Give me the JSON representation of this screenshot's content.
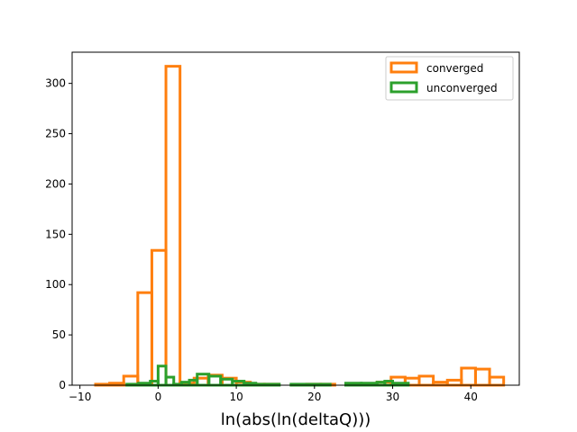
{
  "chart_data": {
    "type": "bar",
    "histtype": "step",
    "title": "",
    "xlabel": "ln(abs(ln(deltaQ)))",
    "ylabel": "",
    "xlim": [
      -11,
      46.2
    ],
    "ylim": [
      0,
      331
    ],
    "xticks": [
      -10,
      0,
      10,
      20,
      30,
      40
    ],
    "yticks": [
      0,
      50,
      100,
      150,
      200,
      250,
      300
    ],
    "grid": false,
    "legend_position": "top-right",
    "series": [
      {
        "name": "converged",
        "color": "#ff7f0e",
        "bin_edges": [
          -8,
          -6.2,
          -4.4,
          -2.6,
          -0.8,
          1.0,
          2.8,
          4.6,
          6.4,
          8.2,
          10.0,
          11.8,
          13.6,
          15.4,
          17.2,
          19.0,
          20.8,
          22.6,
          24.4,
          26.2,
          28.0,
          29.8,
          31.6,
          33.4,
          35.2,
          37.0,
          38.8,
          40.6,
          42.4,
          44.2
        ],
        "counts": [
          1,
          2,
          9,
          92,
          134,
          317,
          2,
          7,
          10,
          7,
          3,
          1,
          1,
          0,
          0,
          1,
          1,
          0,
          1,
          1,
          3,
          8,
          7,
          9,
          3,
          5,
          17,
          16,
          8
        ]
      },
      {
        "name": "unconverged",
        "color": "#2ca02c",
        "bin_edges": [
          -4.0,
          -2.5,
          -1.0,
          0.0,
          1.0,
          2.0,
          3.0,
          4.0,
          5.0,
          6.5,
          8.0,
          9.5,
          11.0,
          12.5,
          15.5,
          17.0,
          22.0,
          24.0,
          26.0,
          28.0,
          29.0,
          30.0,
          32.0
        ],
        "counts": [
          1,
          2,
          4,
          19,
          8,
          1,
          3,
          5,
          11,
          9,
          6,
          4,
          2,
          1,
          0,
          1,
          0,
          2,
          2,
          3,
          4,
          2
        ]
      }
    ]
  }
}
